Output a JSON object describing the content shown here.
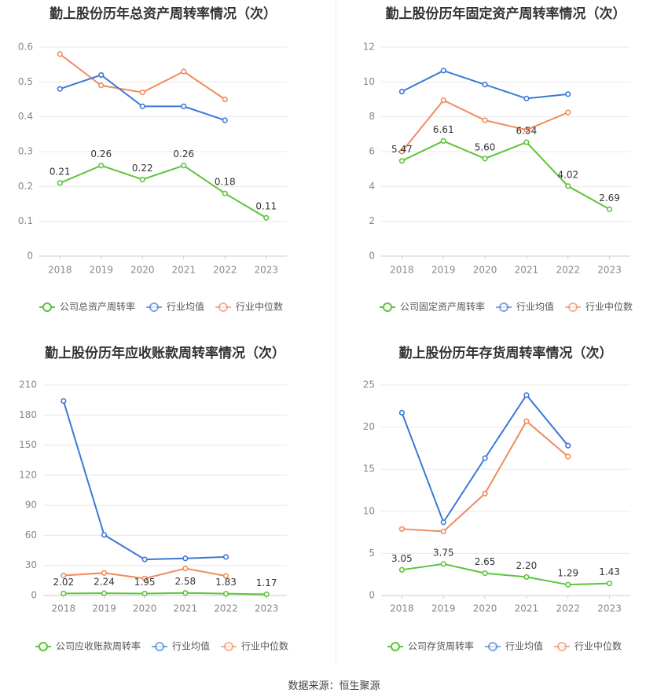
{
  "source_text": "数据来源：恒生聚源",
  "colors": {
    "company": "#5cc43a",
    "avg": "#3c78d8",
    "median": "#f08a5d",
    "grid": "#e8e8e8",
    "axis": "#cccccc"
  },
  "chart_data": [
    {
      "type": "line",
      "title": "勤上股份历年总资产周转率情况（次）",
      "categories": [
        "2018",
        "2019",
        "2020",
        "2021",
        "2022",
        "2023"
      ],
      "ylim": [
        0,
        0.6
      ],
      "yticks": [
        "0",
        "0.1",
        "0.2",
        "0.3",
        "0.4",
        "0.5",
        "0.6"
      ],
      "grid": true,
      "legend": "bottom",
      "series": [
        {
          "name": "公司总资产周转率",
          "values": [
            0.21,
            0.26,
            0.22,
            0.26,
            0.18,
            0.11
          ],
          "labels": [
            "0.21",
            "0.26",
            "0.22",
            "0.26",
            "0.18",
            "0.11"
          ]
        },
        {
          "name": "行业均值",
          "values": [
            0.48,
            0.52,
            0.43,
            0.43,
            0.39,
            null
          ]
        },
        {
          "name": "行业中位数",
          "values": [
            0.58,
            0.49,
            0.47,
            0.53,
            0.45,
            null
          ]
        }
      ]
    },
    {
      "type": "line",
      "title": "勤上股份历年固定资产周转率情况（次）",
      "categories": [
        "2018",
        "2019",
        "2020",
        "2021",
        "2022",
        "2023"
      ],
      "ylim": [
        0,
        12
      ],
      "yticks": [
        "0",
        "2",
        "4",
        "6",
        "8",
        "10",
        "12"
      ],
      "grid": true,
      "legend": "bottom",
      "series": [
        {
          "name": "公司固定资产周转率",
          "values": [
            5.47,
            6.61,
            5.6,
            6.54,
            4.02,
            2.69
          ],
          "labels": [
            "5.47",
            "6.61",
            "5.60",
            "6.54",
            "4.02",
            "2.69"
          ]
        },
        {
          "name": "行业均值",
          "values": [
            9.45,
            10.65,
            9.85,
            9.05,
            9.3,
            null
          ]
        },
        {
          "name": "行业中位数",
          "values": [
            6.0,
            8.95,
            7.8,
            7.25,
            8.25,
            null
          ]
        }
      ]
    },
    {
      "type": "line",
      "title": "勤上股份历年应收账款周转率情况（次）",
      "categories": [
        "2018",
        "2019",
        "2020",
        "2021",
        "2022",
        "2023"
      ],
      "ylim": [
        0,
        210
      ],
      "yticks": [
        "0",
        "30",
        "60",
        "90",
        "120",
        "150",
        "180",
        "210"
      ],
      "grid": true,
      "legend": "bottom",
      "series": [
        {
          "name": "公司应收账款周转率",
          "values": [
            2.02,
            2.24,
            1.95,
            2.58,
            1.83,
            1.17
          ],
          "labels": [
            "2.02",
            "2.24",
            "1.95",
            "2.58",
            "1.83",
            "1.17"
          ]
        },
        {
          "name": "行业均值",
          "values": [
            194,
            60.5,
            36,
            37,
            38.5,
            null
          ]
        },
        {
          "name": "行业中位数",
          "values": [
            20,
            22.5,
            17,
            27,
            19.5,
            null
          ]
        }
      ]
    },
    {
      "type": "line",
      "title": "勤上股份历年存货周转率情况（次）",
      "categories": [
        "2018",
        "2019",
        "2020",
        "2021",
        "2022",
        "2023"
      ],
      "ylim": [
        0,
        25
      ],
      "yticks": [
        "0",
        "5",
        "10",
        "15",
        "20",
        "25"
      ],
      "grid": true,
      "legend": "bottom",
      "series": [
        {
          "name": "公司存货周转率",
          "values": [
            3.05,
            3.75,
            2.65,
            2.2,
            1.29,
            1.43
          ],
          "labels": [
            "3.05",
            "3.75",
            "2.65",
            "2.20",
            "1.29",
            "1.43"
          ]
        },
        {
          "name": "行业均值",
          "values": [
            21.7,
            8.7,
            16.3,
            23.8,
            17.8,
            null
          ]
        },
        {
          "name": "行业中位数",
          "values": [
            7.9,
            7.6,
            12.1,
            20.7,
            16.5,
            null
          ]
        }
      ]
    }
  ]
}
